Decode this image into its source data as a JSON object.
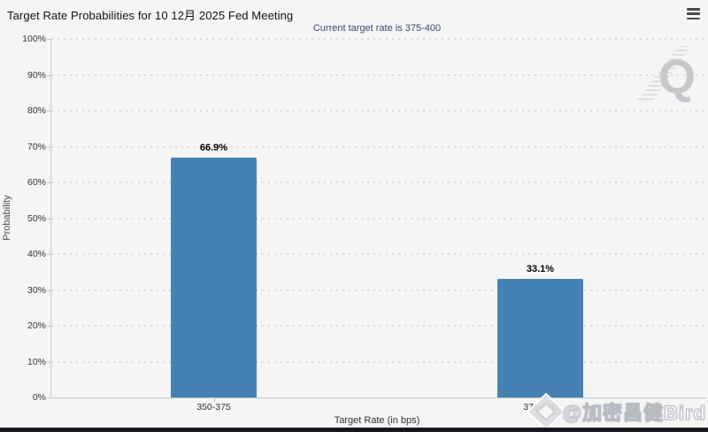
{
  "header": {
    "title": "Target Rate Probabilities for 10 12月 2025 Fed Meeting"
  },
  "menu": {
    "icon": "hamburger-icon"
  },
  "chart_data": {
    "type": "bar",
    "title": "Target Rate Probabilities for 10 12月 2025 Fed Meeting",
    "subtitle": "Current target rate is 375-400",
    "categories": [
      "350-375",
      "375-400"
    ],
    "values": [
      66.9,
      33.1
    ],
    "value_labels": [
      "66.9%",
      "33.1%"
    ],
    "xlabel": "Target Rate (in bps)",
    "ylabel": "Probability",
    "ylim": [
      0,
      100
    ],
    "ytick_step": 10,
    "ytick_labels": [
      "0%",
      "10%",
      "20%",
      "30%",
      "40%",
      "50%",
      "60%",
      "70%",
      "80%",
      "90%",
      "100%"
    ],
    "bar_color": "#4681b4",
    "grid": "horizontal-dotted",
    "legend": "none"
  },
  "watermarks": {
    "q_logo": "Q",
    "social_handle": "@加密昌健Bird",
    "diamond_icon": "diamond-gem-icon"
  },
  "colors": {
    "background": "#f5f5f6",
    "bar": "#4681b4",
    "subtitle": "#3b4a72",
    "gridline": "#d9d9dc",
    "axis": "#c6c6c6",
    "bottom_strip": "#16181d"
  }
}
